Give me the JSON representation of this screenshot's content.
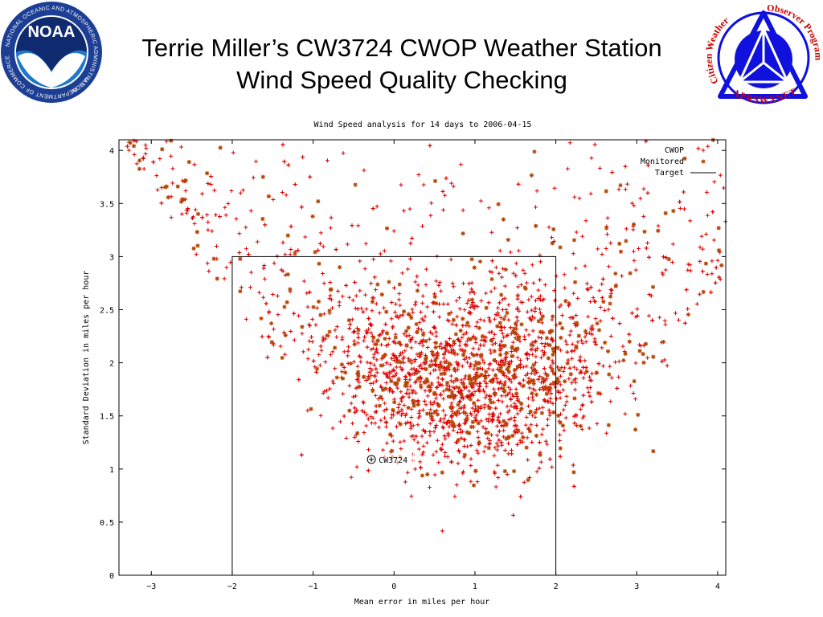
{
  "slide": {
    "title_line1": "Terrie Miller’s CW3724 CWOP Weather Station",
    "title_line2": "Wind Speed Quality Checking"
  },
  "logos": {
    "noaa": {
      "text": "NOAA",
      "ring_text": "NATIONAL OCEANIC AND ATMOSPHERIC ADMINISTRATION",
      "ring_text_bottom": "U.S. DEPARTMENT OF COMMERCE",
      "colors": {
        "ring": "#1c3f94",
        "sky": "#1f78c8",
        "bird": "#ffffff"
      }
    },
    "cwop": {
      "text_left": "Citizen Weather",
      "text_right": "Observer Program",
      "text_bottom": "APRSWXNET",
      "colors": {
        "primary": "#1111dd",
        "text": "#cc0000",
        "triangle": "#ffffff"
      }
    }
  },
  "chart_data": {
    "type": "scatter",
    "title": "Wind Speed analysis for 14 days to 2006-04-15",
    "xlabel": "Mean error in miles per hour",
    "ylabel": "Standard Deviation in miles per hour",
    "xlim": [
      -3.4,
      4.1
    ],
    "ylim": [
      0,
      4.1
    ],
    "xticks": [
      -3,
      -2,
      -1,
      0,
      1,
      2,
      3,
      4
    ],
    "xtick_labels": [
      "−3",
      "−2",
      "−1",
      "0",
      "1",
      "2",
      "3",
      "4"
    ],
    "yticks": [
      0,
      0.5,
      1,
      1.5,
      2,
      2.5,
      3,
      3.5,
      4
    ],
    "ytick_labels": [
      "0",
      "0.5",
      "1",
      "1.5",
      "2",
      "2.5",
      "3",
      "3.5",
      "4"
    ],
    "grid": false,
    "legend_position": "top-right",
    "series": [
      {
        "name": "CWOP",
        "marker": "plus",
        "color": "#dd0000",
        "approx_count": 2600
      },
      {
        "name": "Monitored",
        "marker": "star",
        "color": "#b34700",
        "approx_count": 420
      },
      {
        "name": "Target",
        "marker": "line",
        "color": "#000000",
        "box": {
          "x": [
            -2,
            2
          ],
          "y": [
            0,
            3
          ]
        }
      }
    ],
    "distribution": {
      "cluster_center": {
        "x": 0.9,
        "y": 1.8
      },
      "range_x": [
        -3.4,
        4.1
      ],
      "range_y": [
        0,
        4.1
      ]
    },
    "highlight": {
      "label": "CW3724",
      "x": -0.28,
      "y": 1.09
    }
  }
}
